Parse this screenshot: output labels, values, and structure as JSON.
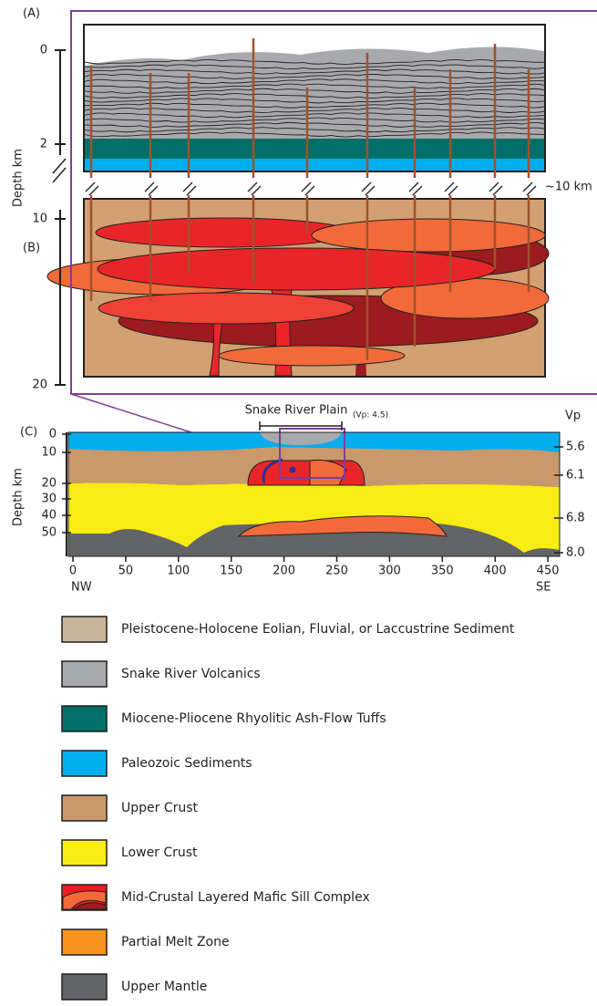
{
  "panel_a": {
    "label": "(A)",
    "depth_ticks": [
      "0",
      "2"
    ]
  },
  "panel_b": {
    "label": "(B)",
    "depth_ticks": [
      "10",
      "20"
    ],
    "break_label": "~10 km"
  },
  "upper_axis_label": "Depth km",
  "panel_c": {
    "label": "(C)",
    "title": "Snake River Plain",
    "title_note": "(Vp: 4.5)",
    "vp_header": "Vp",
    "depth_ticks": [
      "0",
      "10",
      "20",
      "30",
      "40",
      "50"
    ],
    "axis_label": "Depth km",
    "x_ticks": [
      "0",
      "50",
      "100",
      "150",
      "200",
      "250",
      "300",
      "350",
      "400",
      "450"
    ],
    "x_left": "NW",
    "x_right": "SE",
    "vp_values": [
      "5.6",
      "6.1",
      "6.8",
      "8.0"
    ]
  },
  "legend": [
    {
      "label": "Pleistocene-Holocene Eolian, Fluvial, or Laccustrine Sediment",
      "color": "#c8b59a"
    },
    {
      "label": "Snake River Volcanics",
      "color": "#a7a9ac"
    },
    {
      "label": "Miocene-Pliocene Rhyolitic Ash-Flow Tuffs",
      "color": "#006f6a"
    },
    {
      "label": "Paleozoic Sediments",
      "color": "#00aeef"
    },
    {
      "label": "Upper Crust",
      "color": "#c9996b"
    },
    {
      "label": "Lower Crust",
      "color": "#f7ec13"
    },
    {
      "label": "Mid-Crustal Layered Mafic Sill Complex",
      "color": "#ed1c24"
    },
    {
      "label": "Partial Melt Zone",
      "color": "#f7941d"
    },
    {
      "label": "Upper Mantle",
      "color": "#636466"
    }
  ]
}
